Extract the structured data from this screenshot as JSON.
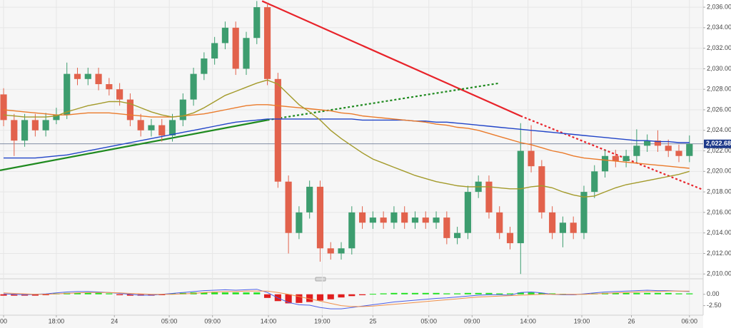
{
  "chart_data": {
    "type": "candlestick",
    "candles": {
      "open": [
        2027.5,
        2025,
        2023,
        2025,
        2024,
        2025,
        2025.5,
        2029.5,
        2029,
        2029.5,
        2028.5,
        2028,
        2027,
        2025,
        2024,
        2024.5,
        2023.5,
        2025,
        2027,
        2029.5,
        2031,
        2032.5,
        2034,
        2030,
        2033,
        2036,
        2029,
        2019,
        2014,
        2016,
        2018.5,
        2012.5,
        2012,
        2012.5,
        2016,
        2015,
        2015.5,
        2015,
        2016,
        2015,
        2015.5,
        2015,
        2015.5,
        2013.5,
        2014,
        2018,
        2019,
        2016,
        2014,
        2013,
        2022,
        2020.5,
        2016,
        2014,
        2015,
        2014,
        2018,
        2020,
        2021.5,
        2021,
        2021.5,
        2022.5,
        2023,
        2022.5,
        2022,
        2021.5
      ],
      "high": [
        2028.1,
        2025.6,
        2025.6,
        2025.6,
        2025.7,
        2026.2,
        2030.6,
        2030.1,
        2030.1,
        2030.1,
        2029.1,
        2028.6,
        2027.6,
        2025.6,
        2025.1,
        2025.1,
        2025.6,
        2027.6,
        2030.1,
        2031.6,
        2033.1,
        2034.6,
        2034.6,
        2033.6,
        2036.6,
        2036.4,
        2029.6,
        2019.6,
        2016.6,
        2019.1,
        2019.1,
        2013.1,
        2013.1,
        2016.6,
        2016.6,
        2016.1,
        2016.1,
        2016.6,
        2016.6,
        2016.1,
        2016.1,
        2016.1,
        2016.1,
        2014.6,
        2018.6,
        2019.6,
        2019.6,
        2016.6,
        2014.6,
        2024.7,
        2024.5,
        2021.1,
        2016.6,
        2015.6,
        2015.6,
        2018.6,
        2020.6,
        2022.1,
        2022.1,
        2022.1,
        2024.1,
        2023.6,
        2024,
        2023.1,
        2022.6,
        2023.5
      ],
      "low": [
        2024.4,
        2021.5,
        2022.4,
        2023.4,
        2023.4,
        2024.6,
        2025.1,
        2028.4,
        2028.4,
        2027.9,
        2027.4,
        2026.4,
        2024.4,
        2023.4,
        2023.4,
        2022.9,
        2022.9,
        2024.4,
        2026.4,
        2028.9,
        2030.4,
        2031.9,
        2029.4,
        2029.4,
        2032.4,
        2028.4,
        2018.4,
        2012,
        2013.4,
        2015.4,
        2011.2,
        2011.4,
        2011.4,
        2011.9,
        2014.4,
        2014.4,
        2014.4,
        2014.4,
        2014.4,
        2014.4,
        2014.4,
        2014.4,
        2012.9,
        2012.9,
        2013.4,
        2017.4,
        2015.4,
        2013.4,
        2012.4,
        2010,
        2019.9,
        2015.4,
        2013.4,
        2012.6,
        2013.4,
        2013.4,
        2017.4,
        2019.4,
        2020.4,
        2020.4,
        2020.9,
        2021.9,
        2021.9,
        2021.4,
        2020.9,
        2020.9
      ],
      "close": [
        2025,
        2023,
        2025,
        2024,
        2025,
        2025.5,
        2029.5,
        2029,
        2029.5,
        2028.5,
        2028,
        2027,
        2025,
        2024,
        2024.5,
        2023.5,
        2025,
        2027,
        2029.5,
        2031,
        2032.5,
        2034,
        2030,
        2033,
        2036,
        2029,
        2019,
        2014,
        2016,
        2018.5,
        2012.5,
        2012,
        2012.5,
        2016,
        2015,
        2015.5,
        2015,
        2016,
        2015,
        2015.5,
        2015,
        2015.5,
        2013.5,
        2014,
        2018,
        2019,
        2016,
        2014,
        2013,
        2022,
        2020.5,
        2016,
        2014,
        2015,
        2014,
        2018,
        2020,
        2021.5,
        2021,
        2021.5,
        2022.5,
        2023,
        2022.5,
        2022,
        2021.5,
        2022.68
      ],
      "up_color": "#3d9d6f",
      "down_color": "#e2624c"
    },
    "moving_averages": [
      {
        "color": "#2144c8",
        "values": [
          2021.3,
          2021.3,
          2021.3,
          2021.3,
          2021.4,
          2021.5,
          2021.6,
          2021.8,
          2022.0,
          2022.2,
          2022.4,
          2022.6,
          2022.8,
          2023.0,
          2023.2,
          2023.4,
          2023.6,
          2023.8,
          2024.0,
          2024.2,
          2024.4,
          2024.6,
          2024.8,
          2024.9,
          2025.0,
          2025.1,
          2025.1,
          2025.1,
          2025.1,
          2025.1,
          2025.1,
          2025.1,
          2025.1,
          2025.1,
          2025.0,
          2025.0,
          2025.0,
          2025.0,
          2025.0,
          2024.9,
          2024.9,
          2024.8,
          2024.8,
          2024.7,
          2024.6,
          2024.5,
          2024.4,
          2024.3,
          2024.2,
          2024.1,
          2024.0,
          2023.9,
          2023.8,
          2023.7,
          2023.6,
          2023.5,
          2023.4,
          2023.3,
          2023.2,
          2023.1,
          2023.0,
          2023.0,
          2022.9,
          2022.9,
          2022.8,
          2022.8
        ]
      },
      {
        "color": "#ea7a2a",
        "values": [
          2026.0,
          2025.9,
          2025.8,
          2025.7,
          2025.6,
          2025.5,
          2025.5,
          2025.6,
          2025.7,
          2025.7,
          2025.7,
          2025.6,
          2025.5,
          2025.4,
          2025.3,
          2025.3,
          2025.3,
          2025.4,
          2025.5,
          2025.6,
          2025.8,
          2026.0,
          2026.2,
          2026.4,
          2026.5,
          2026.5,
          2026.4,
          2026.3,
          2026.2,
          2026.1,
          2026.0,
          2025.9,
          2025.7,
          2025.6,
          2025.4,
          2025.3,
          2025.2,
          2025.1,
          2025.0,
          2024.9,
          2024.8,
          2024.6,
          2024.5,
          2024.3,
          2024.2,
          2024.0,
          2023.7,
          2023.4,
          2023.1,
          2022.8,
          2022.6,
          2022.3,
          2022.0,
          2021.8,
          2021.5,
          2021.3,
          2021.2,
          2021.1,
          2021.0,
          2020.9,
          2020.8,
          2020.7,
          2020.6,
          2020.5,
          2020.4,
          2020.3
        ]
      },
      {
        "color": "#a39a2a",
        "values": [
          2025.5,
          2025.4,
          2025.3,
          2025.3,
          2025.3,
          2025.4,
          2025.8,
          2026.1,
          2026.4,
          2026.6,
          2026.8,
          2026.8,
          2026.6,
          2026.2,
          2025.8,
          2025.5,
          2025.3,
          2025.4,
          2025.7,
          2026.2,
          2026.8,
          2027.4,
          2027.8,
          2028.2,
          2028.6,
          2028.9,
          2028.5,
          2027.5,
          2026.5,
          2025.8,
          2025.0,
          2024.0,
          2023.2,
          2022.5,
          2021.8,
          2021.2,
          2020.8,
          2020.4,
          2020.0,
          2019.6,
          2019.3,
          2019.0,
          2018.8,
          2018.6,
          2018.5,
          2018.5,
          2018.5,
          2018.4,
          2018.3,
          2018.3,
          2018.5,
          2018.6,
          2018.4,
          2018.0,
          2017.7,
          2017.5,
          2017.6,
          2018.0,
          2018.4,
          2018.7,
          2018.9,
          2019.1,
          2019.3,
          2019.5,
          2019.7,
          2020.0
        ]
      }
    ],
    "trendlines": [
      {
        "color": "#e8232a",
        "style": "solid",
        "x": [
          24.5,
          49
        ],
        "y": [
          2036.6,
          2025.4
        ]
      },
      {
        "color": "#e8232a",
        "style": "dotted",
        "x": [
          49,
          66.3
        ],
        "y": [
          2025.4,
          2018.2
        ]
      },
      {
        "color": "#1f8a1f",
        "style": "solid",
        "x": [
          -0.34,
          25
        ],
        "y": [
          2020.1,
          2025.0
        ]
      },
      {
        "color": "#1f8a1f",
        "style": "dotted",
        "x": [
          25,
          47
        ],
        "y": [
          2025.0,
          2028.6
        ]
      }
    ],
    "last": {
      "value": 2022.68,
      "label": "2,022.68",
      "color": "#1e3a8a"
    },
    "xlim": [
      -0.34,
      66.3
    ],
    "ylim": [
      2009.6,
      2036.7
    ],
    "xticks": [
      {
        "value": 0,
        "label": "00"
      },
      {
        "value": 5,
        "label": "18:00"
      },
      {
        "value": 10.5,
        "label": "24"
      },
      {
        "value": 15.7,
        "label": "05:00"
      },
      {
        "value": 19.8,
        "label": "09:00"
      },
      {
        "value": 25.1,
        "label": "14:00"
      },
      {
        "value": 30.2,
        "label": "19:00"
      },
      {
        "value": 35,
        "label": "25"
      },
      {
        "value": 40.3,
        "label": "05:00"
      },
      {
        "value": 44.4,
        "label": "09:00"
      },
      {
        "value": 49.7,
        "label": "14:00"
      },
      {
        "value": 54.8,
        "label": "19:00"
      },
      {
        "value": 59.5,
        "label": "26"
      },
      {
        "value": 65,
        "label": "06:00"
      }
    ],
    "yticks": [
      {
        "value": 2010,
        "label": "2,010.00"
      },
      {
        "value": 2012,
        "label": "2,012.00"
      },
      {
        "value": 2014,
        "label": "2,014.00"
      },
      {
        "value": 2016,
        "label": "2,016.00"
      },
      {
        "value": 2018,
        "label": "2,018.00"
      },
      {
        "value": 2020,
        "label": "2,020.00"
      },
      {
        "value": 2022,
        "label": "2,022.00"
      },
      {
        "value": 2024,
        "label": "2,024.00"
      },
      {
        "value": 2026,
        "label": "2,026.00"
      },
      {
        "value": 2028,
        "label": "2,028.00"
      },
      {
        "value": 2030,
        "label": "2,030.00"
      },
      {
        "value": 2032,
        "label": "2,032.00"
      },
      {
        "value": 2034,
        "label": "2,034.00"
      },
      {
        "value": 2036,
        "label": "2,036.00"
      }
    ],
    "grid": true,
    "macd": {
      "ylim": [
        -4.6,
        3.1
      ],
      "yticks": [
        {
          "value": 0,
          "label": "0.00"
        },
        {
          "value": -2.5,
          "label": "-2.50"
        }
      ],
      "histogram": [
        -0.3,
        -0.3,
        -0.3,
        -0.3,
        -0.2,
        0.2,
        0.3,
        0.3,
        0.3,
        0.3,
        0.2,
        -0.2,
        -0.3,
        -0.3,
        -0.3,
        -0.2,
        0.2,
        0.3,
        0.4,
        0.4,
        0.4,
        0.4,
        0.4,
        0.4,
        0.4,
        -0.8,
        -1.5,
        -2.0,
        -1.9,
        -1.7,
        -1.4,
        -1.1,
        -0.7,
        -0.4,
        -0.2,
        0.1,
        0.2,
        0.3,
        0.3,
        0.3,
        0.3,
        0.3,
        0.2,
        0.2,
        0.3,
        0.3,
        0.3,
        0.2,
        0.2,
        0.4,
        0.4,
        0.3,
        0.2,
        0.1,
        -0.1,
        0.1,
        0.2,
        0.3,
        0.3,
        0.3,
        0.3,
        0.3,
        0.3,
        0.3,
        0.2,
        0.2
      ],
      "up_color": "#1ee01e",
      "down_color": "#e01e1e",
      "lines": [
        {
          "color": "#4a5ee8",
          "values": [
            0.1,
            0.0,
            -0.1,
            0.0,
            0.1,
            0.3,
            0.5,
            0.6,
            0.6,
            0.5,
            0.4,
            0.2,
            0.0,
            -0.2,
            -0.2,
            0.0,
            0.2,
            0.4,
            0.6,
            0.8,
            0.9,
            1.0,
            0.9,
            1.0,
            1.1,
            0.4,
            -0.8,
            -1.8,
            -2.3,
            -2.4,
            -2.9,
            -3.2,
            -3.2,
            -2.9,
            -2.6,
            -2.3,
            -2.0,
            -1.7,
            -1.5,
            -1.3,
            -1.1,
            -0.9,
            -0.8,
            -0.6,
            -0.4,
            -0.2,
            -0.1,
            -0.1,
            -0.2,
            0.4,
            0.5,
            0.3,
            0.0,
            -0.1,
            -0.1,
            0.1,
            0.3,
            0.5,
            0.6,
            0.7,
            0.8,
            0.9,
            0.8,
            0.8,
            0.7,
            0.6
          ]
        },
        {
          "color": "#f0904a",
          "values": [
            0.3,
            0.2,
            0.1,
            0.0,
            0.0,
            0.1,
            0.2,
            0.3,
            0.4,
            0.4,
            0.4,
            0.3,
            0.2,
            0.1,
            0.0,
            0.0,
            0.0,
            0.1,
            0.2,
            0.4,
            0.5,
            0.6,
            0.6,
            0.7,
            0.7,
            0.7,
            0.4,
            0.0,
            -0.5,
            -1.0,
            -1.5,
            -2.0,
            -2.5,
            -2.7,
            -2.7,
            -2.6,
            -2.4,
            -2.2,
            -2.0,
            -1.8,
            -1.6,
            -1.4,
            -1.2,
            -1.0,
            -0.8,
            -0.6,
            -0.5,
            -0.4,
            -0.3,
            -0.2,
            -0.1,
            0.0,
            0.0,
            0.0,
            0.0,
            0.0,
            0.1,
            0.2,
            0.3,
            0.4,
            0.5,
            0.6,
            0.6,
            0.7,
            0.7,
            0.7
          ]
        }
      ]
    }
  }
}
